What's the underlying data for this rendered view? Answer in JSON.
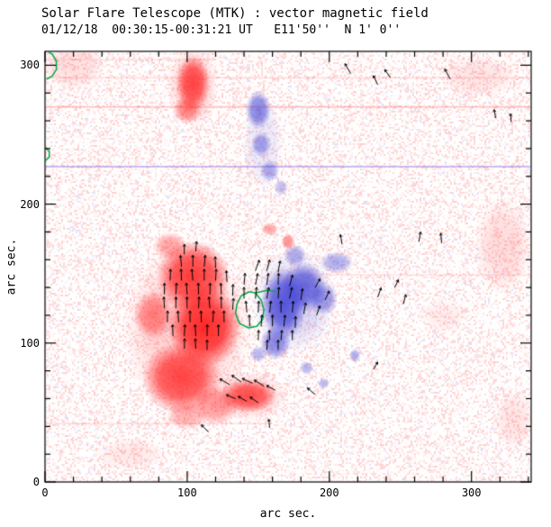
{
  "chart_data": {
    "type": "heatmap",
    "title": "Solar Flare Telescope (MTK) : vector magnetic field",
    "subtitle": "01/12/18  00:30:15-00:31:21 UT   E11'50''  N 1' 0''",
    "xlabel": "arc sec.",
    "ylabel": "arc sec.",
    "xlim": [
      0,
      342
    ],
    "ylim": [
      0,
      310
    ],
    "xticks": [
      0,
      100,
      200,
      300
    ],
    "yticks": [
      0,
      100,
      200,
      300
    ],
    "minor_tick_interval": 20,
    "colors": {
      "positive_polarity": "255,30,30",
      "negative_polarity": "70,70,215",
      "contour": "#0aa84a",
      "axis": "#000000",
      "vector": "#000000",
      "background": "#ffffff"
    },
    "noise": {
      "seed": 1234,
      "cell": 2,
      "p_red": 0.4,
      "p_blue": 0.06,
      "red_alpha": 0.26,
      "blue_alpha": 0.2
    },
    "streaks": [
      {
        "y": 291,
        "x0": 0,
        "x1": 342,
        "color": "255,80,80",
        "alpha": 0.16
      },
      {
        "y": 270,
        "x0": 0,
        "x1": 342,
        "color": "255,60,60",
        "alpha": 0.28
      },
      {
        "y": 227,
        "x0": 0,
        "x1": 342,
        "color": "130,90,210",
        "alpha": 0.4
      },
      {
        "y": 149,
        "x0": 170,
        "x1": 342,
        "color": "255,80,80",
        "alpha": 0.14
      },
      {
        "y": 42,
        "x0": 0,
        "x1": 160,
        "color": "255,80,80",
        "alpha": 0.14
      },
      {
        "y": 304,
        "x0": 0,
        "x1": 120,
        "color": "255,80,80",
        "alpha": 0.14
      }
    ],
    "faint_regions": [
      [
        322,
        170,
        20,
        35,
        0.16
      ],
      [
        305,
        292,
        28,
        16,
        0.12
      ],
      [
        20,
        300,
        22,
        18,
        0.14
      ],
      [
        330,
        45,
        14,
        22,
        0.12
      ],
      [
        60,
        20,
        25,
        12,
        0.1
      ],
      [
        280,
        120,
        18,
        12,
        0.08
      ]
    ],
    "positive_regions": [
      [
        104,
        148,
        26,
        26,
        0.85
      ],
      [
        112,
        112,
        26,
        30,
        0.95
      ],
      [
        96,
        75,
        28,
        26,
        0.8
      ],
      [
        120,
        55,
        16,
        14,
        0.45
      ],
      [
        76,
        120,
        14,
        18,
        0.5
      ],
      [
        88,
        170,
        12,
        10,
        0.4
      ],
      [
        100,
        110,
        46,
        62,
        0.22
      ],
      [
        100,
        48,
        15,
        10,
        0.35
      ],
      [
        104,
        287,
        12,
        20,
        0.8
      ],
      [
        100,
        268,
        10,
        10,
        0.5
      ],
      [
        104,
        285,
        18,
        30,
        0.22
      ],
      [
        143,
        62,
        20,
        12,
        0.75
      ],
      [
        143,
        62,
        28,
        18,
        0.22
      ],
      [
        171,
        173,
        5,
        6,
        0.5
      ],
      [
        158,
        182,
        6,
        5,
        0.4
      ]
    ],
    "negative_regions": [
      [
        168,
        128,
        16,
        26,
        0.9
      ],
      [
        182,
        140,
        16,
        18,
        0.8
      ],
      [
        196,
        132,
        10,
        12,
        0.55
      ],
      [
        162,
        100,
        11,
        12,
        0.65
      ],
      [
        176,
        163,
        8,
        8,
        0.45
      ],
      [
        175,
        130,
        30,
        38,
        0.22
      ],
      [
        150,
        92,
        6,
        6,
        0.4
      ],
      [
        205,
        158,
        12,
        8,
        0.45
      ],
      [
        150,
        268,
        9,
        14,
        0.65
      ],
      [
        152,
        243,
        7,
        9,
        0.5
      ],
      [
        158,
        224,
        7,
        8,
        0.45
      ],
      [
        166,
        212,
        5,
        6,
        0.35
      ],
      [
        153,
        245,
        14,
        35,
        0.13
      ],
      [
        218,
        91,
        4,
        5,
        0.45
      ],
      [
        196,
        71,
        4,
        4,
        0.4
      ],
      [
        184,
        82,
        5,
        5,
        0.4
      ]
    ],
    "contours": [
      {
        "points": [
          [
            144,
            137
          ],
          [
            138,
            134
          ],
          [
            135,
            128
          ],
          [
            134,
            121
          ],
          [
            137,
            114
          ],
          [
            143,
            111
          ],
          [
            149,
            112
          ],
          [
            153,
            117
          ],
          [
            154,
            124
          ],
          [
            152,
            131
          ],
          [
            148,
            136
          ],
          [
            144,
            137
          ]
        ]
      },
      {
        "points": [
          [
            148,
            136
          ],
          [
            156,
            138
          ],
          [
            163,
            137
          ]
        ]
      },
      {
        "points": [
          [
            0,
            311
          ],
          [
            5,
            308
          ],
          [
            8,
            303
          ],
          [
            8,
            297
          ],
          [
            5,
            292
          ],
          [
            1,
            290
          ]
        ]
      },
      {
        "points": [
          [
            0,
            241
          ],
          [
            3,
            238
          ],
          [
            3,
            234
          ],
          [
            0,
            231
          ]
        ]
      }
    ],
    "field_vectors": [
      [
        96,
        155,
        95,
        8
      ],
      [
        104,
        155,
        90,
        8
      ],
      [
        112,
        155,
        85,
        8
      ],
      [
        120,
        154,
        92,
        8
      ],
      [
        88,
        145,
        88,
        8
      ],
      [
        96,
        145,
        92,
        8
      ],
      [
        104,
        145,
        95,
        8
      ],
      [
        112,
        145,
        90,
        8
      ],
      [
        120,
        145,
        87,
        8
      ],
      [
        128,
        144,
        93,
        8
      ],
      [
        84,
        135,
        90,
        8
      ],
      [
        92,
        135,
        86,
        8
      ],
      [
        100,
        135,
        94,
        8
      ],
      [
        108,
        135,
        91,
        8
      ],
      [
        116,
        135,
        89,
        8
      ],
      [
        124,
        135,
        92,
        8
      ],
      [
        132,
        134,
        88,
        8
      ],
      [
        84,
        125,
        93,
        8
      ],
      [
        92,
        125,
        89,
        8
      ],
      [
        100,
        125,
        91,
        8
      ],
      [
        108,
        125,
        87,
        8
      ],
      [
        116,
        125,
        95,
        8
      ],
      [
        124,
        125,
        90,
        8
      ],
      [
        132,
        124,
        86,
        8
      ],
      [
        86,
        115,
        88,
        8
      ],
      [
        94,
        115,
        94,
        8
      ],
      [
        102,
        115,
        90,
        8
      ],
      [
        110,
        115,
        92,
        8
      ],
      [
        118,
        115,
        86,
        8
      ],
      [
        126,
        115,
        91,
        8
      ],
      [
        90,
        105,
        92,
        8
      ],
      [
        98,
        105,
        87,
        8
      ],
      [
        106,
        105,
        93,
        8
      ],
      [
        114,
        105,
        89,
        8
      ],
      [
        122,
        105,
        90,
        8
      ],
      [
        98,
        96,
        88,
        7
      ],
      [
        106,
        96,
        92,
        7
      ],
      [
        114,
        95,
        90,
        7
      ],
      [
        98,
        164,
        90,
        7
      ],
      [
        106,
        166,
        85,
        7
      ],
      [
        148,
        152,
        70,
        8
      ],
      [
        156,
        152,
        75,
        8
      ],
      [
        164,
        151,
        80,
        8
      ],
      [
        140,
        142,
        85,
        8
      ],
      [
        148,
        142,
        78,
        8
      ],
      [
        156,
        142,
        82,
        8
      ],
      [
        164,
        142,
        88,
        8
      ],
      [
        172,
        141,
        75,
        8
      ],
      [
        140,
        132,
        90,
        8
      ],
      [
        148,
        132,
        84,
        8
      ],
      [
        156,
        132,
        80,
        8
      ],
      [
        164,
        132,
        86,
        8
      ],
      [
        172,
        132,
        78,
        8
      ],
      [
        180,
        131,
        82,
        8
      ],
      [
        142,
        122,
        95,
        8
      ],
      [
        150,
        122,
        88,
        8
      ],
      [
        158,
        122,
        84,
        8
      ],
      [
        166,
        122,
        90,
        8
      ],
      [
        174,
        122,
        86,
        8
      ],
      [
        182,
        121,
        80,
        8
      ],
      [
        144,
        112,
        92,
        8
      ],
      [
        152,
        112,
        86,
        8
      ],
      [
        160,
        112,
        90,
        8
      ],
      [
        168,
        112,
        84,
        8
      ],
      [
        176,
        111,
        88,
        8
      ],
      [
        150,
        102,
        88,
        7
      ],
      [
        158,
        102,
        92,
        7
      ],
      [
        166,
        102,
        85,
        7
      ],
      [
        174,
        102,
        90,
        7
      ],
      [
        156,
        95,
        86,
        7
      ],
      [
        164,
        95,
        90,
        7
      ],
      [
        190,
        140,
        60,
        7
      ],
      [
        197,
        131,
        65,
        7
      ],
      [
        191,
        120,
        70,
        7
      ],
      [
        130,
        70,
        150,
        8
      ],
      [
        138,
        72,
        145,
        8
      ],
      [
        146,
        71,
        155,
        8
      ],
      [
        154,
        69,
        148,
        8
      ],
      [
        162,
        66,
        152,
        7
      ],
      [
        134,
        60,
        158,
        7
      ],
      [
        142,
        58,
        150,
        7
      ],
      [
        150,
        57,
        145,
        7
      ],
      [
        215,
        294,
        120,
        8
      ],
      [
        234,
        286,
        115,
        7
      ],
      [
        243,
        291,
        125,
        7
      ],
      [
        285,
        290,
        118,
        8
      ],
      [
        209,
        171,
        100,
        7
      ],
      [
        263,
        173,
        80,
        7
      ],
      [
        279,
        172,
        95,
        7
      ],
      [
        317,
        262,
        100,
        6
      ],
      [
        328,
        259,
        95,
        6
      ],
      [
        234,
        133,
        70,
        7
      ],
      [
        252,
        128,
        75,
        7
      ],
      [
        246,
        140,
        65,
        6
      ],
      [
        115,
        36,
        135,
        7
      ],
      [
        190,
        63,
        140,
        7
      ],
      [
        231,
        81,
        60,
        6
      ],
      [
        158,
        39,
        95,
        6
      ]
    ]
  }
}
